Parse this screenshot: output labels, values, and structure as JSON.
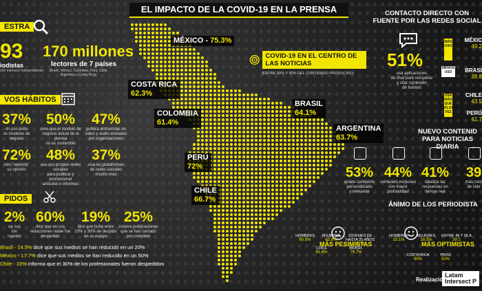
{
  "header": {
    "title": "EL IMPACTO DE LA COVID-19 EN LA PRENSA"
  },
  "left_top": {
    "section_fragment": "ESTRA",
    "stat1_value": "93",
    "stat1_label": "iodistas",
    "stat1_sub": "(ión Intersect Independiente)",
    "stat2_value": "170 millones",
    "stat2_label": "lectores de 7 países",
    "stat2_sub": "(Brasil, México, Colombia, Perú, Chile, Argentina y Costa Rica)"
  },
  "habitos": {
    "heading": "VOS HÁBITOS",
    "items": [
      {
        "value": "37%",
        "text": "ón con éxito\nos modelos de\nnegocio"
      },
      {
        "value": "50%",
        "text": "cree que el modelo de\nnegocio actual de la prensa\nno es sostenible"
      },
      {
        "value": "47%",
        "text": "publica entrevistas en\nvideo y audio enviadas\npor organizaciones"
      },
      {
        "value": "72%",
        "text": "ndo \"opinista\"\nsu opinión"
      },
      {
        "value": "48%",
        "text": "usa sus propias redes sociales\npara publicar y promocionar\nartículos e informes"
      },
      {
        "value": "37%",
        "text": "usa las plataformas\nde redes sociales\nmucho más"
      }
    ]
  },
  "despidos": {
    "heading": "PIDOS",
    "items": [
      {
        "value": "2%",
        "text": "ue sus\nión\nrupción"
      },
      {
        "value": "60%",
        "text": "dice que en sus\nredacciones nadie fue\ndespedido"
      },
      {
        "value": "19%",
        "text": "dice que hubo entre\n10% y 30% de despido\nen su equipo"
      },
      {
        "value": "25%",
        "text": "conoce publicaciones\nque se han cerrado\npor completo"
      }
    ],
    "lines": [
      {
        "country": "Brasil - 14.5%",
        "text": " dice que sus medios se han reducido en un 20%"
      },
      {
        "country": "México - 17.7%",
        "text": " dice que sus medios se han reducido en un 50%"
      },
      {
        "country": "Chile - 13%",
        "text": " informa que el 30% de los profesionales fueron despedidos"
      }
    ]
  },
  "map": {
    "countries": [
      {
        "name": "MÉXICO",
        "pct": "75.3%"
      },
      {
        "name": "COSTA RICA",
        "pct": "62.3%"
      },
      {
        "name": "COLOMBIA",
        "pct": "61.4%"
      },
      {
        "name": "PERÚ",
        "pct": "72%"
      },
      {
        "name": "CHILE",
        "pct": "66.7%"
      },
      {
        "name": "BRASIL",
        "pct": "64.1%"
      },
      {
        "name": "ARGENTINA",
        "pct": "63.7%"
      }
    ],
    "center_title": "COVID-19 EN EL CENTRO DE LAS NOTICIAS",
    "center_sub": "(ENTRE 50% Y 90% DEL CONTENIDO PRODUCIDO)"
  },
  "right_top": {
    "heading": "CONTACTO DIRECTO CON FUENTE POR LAS REDES SOCIAL",
    "value": "51%",
    "text": "usa aplicaciones\nde chat para recuperar\ny citar contenido\nde fuentes",
    "badges": [
      "MÁS USO",
      "MENOS USO",
      "USA MÁS QUE ALGUNA VEZ"
    ],
    "countries": [
      {
        "name": "MÉXIC",
        "pct": "49.2"
      },
      {
        "name": "BRASI",
        "pct": "28.8"
      },
      {
        "name": "CHILE",
        "pct": "43.5"
      },
      {
        "name": "PERÚ",
        "pct": "41.7"
      }
    ]
  },
  "contenido": {
    "heading": "NUEVO CONTENID PARA NOTICIAS DIARIA",
    "items": [
      {
        "value": "53%",
        "text": "quiere contenido\npersonalizado\ny relevante"
      },
      {
        "value": "44%",
        "text": "contenido exclusivo\ncon mayor\nprofundidad"
      },
      {
        "value": "41%",
        "text": "idealiza las\nrespuestas en\ntiempo real"
      },
      {
        "value": "39",
        "text": "más cont\nde vide"
      }
    ]
  },
  "animo": {
    "heading": "ÁNIMO DE LOS PERIODISTA",
    "pesimistas_title": "MÁS PESIMISTAS",
    "optimistas_title": "MÁS OPTIMISTAS",
    "pesimistas": [
      {
        "label": "HOMBRES",
        "pct": "60.5%"
      },
      {
        "label": "MUJERES",
        "pct": "62.8%"
      },
      {
        "label": "JÓVENES DE HASTA 25 AÑOS",
        "pct": "81%"
      },
      {
        "label": "CHILE",
        "pct": "81.8%"
      },
      {
        "label": "BRASIL",
        "pct": "76.7%"
      }
    ],
    "optimistas": [
      {
        "label": "HOMBRES",
        "pct": "33.1%"
      },
      {
        "label": "MUJERES",
        "pct": "28.5%"
      },
      {
        "label": "ENTRE 46 Y 55 A",
        "pct": "39.2"
      },
      {
        "label": "COSTA RICA",
        "pct": "60%"
      },
      {
        "label": "PERÚ",
        "pct": "52%"
      }
    ]
  },
  "footer": {
    "realizacion": "Realización:",
    "logo_line1": "Latam",
    "logo_line2": "Intersect P"
  }
}
